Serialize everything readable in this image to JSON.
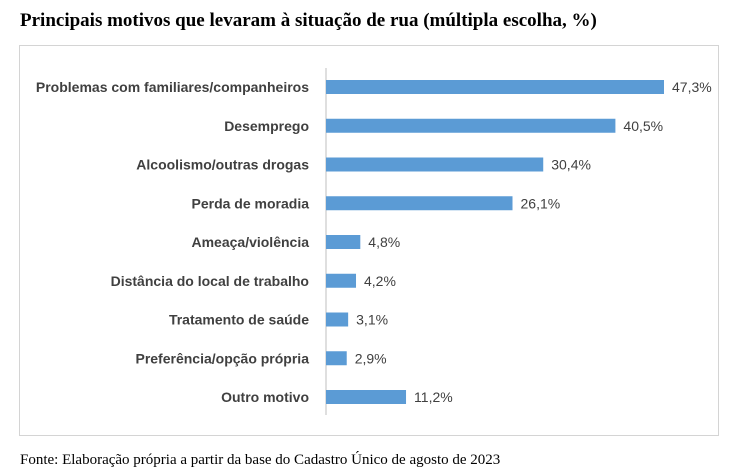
{
  "title": "Principais motivos que levaram à situação de rua (múltipla escolha, %)",
  "source": "Fonte: Elaboração própria a partir da base do Cadastro Único de agosto de 2023",
  "colors": {
    "bar": "#5b9bd5",
    "axis": "#bfbfbf",
    "text": "#404040"
  },
  "chart_data": {
    "type": "bar",
    "orientation": "horizontal",
    "title": "Principais motivos que levaram à situação de rua (múltipla escolha, %)",
    "categories": [
      "Problemas com familiares/companheiros",
      "Desemprego",
      "Alcoolismo/outras drogas",
      "Perda de moradia",
      "Ameaça/violência",
      "Distância do local de trabalho",
      "Tratamento de saúde",
      "Preferência/opção própria",
      "Outro motivo"
    ],
    "values": [
      47.3,
      40.5,
      30.4,
      26.1,
      4.8,
      4.2,
      3.1,
      2.9,
      11.2
    ],
    "value_labels": [
      "47,3%",
      "40,5%",
      "30,4%",
      "26,1%",
      "4,8%",
      "4,2%",
      "3,1%",
      "2,9%",
      "11,2%"
    ],
    "xlim": [
      0,
      47.3
    ],
    "grid": false,
    "legend": "none"
  }
}
